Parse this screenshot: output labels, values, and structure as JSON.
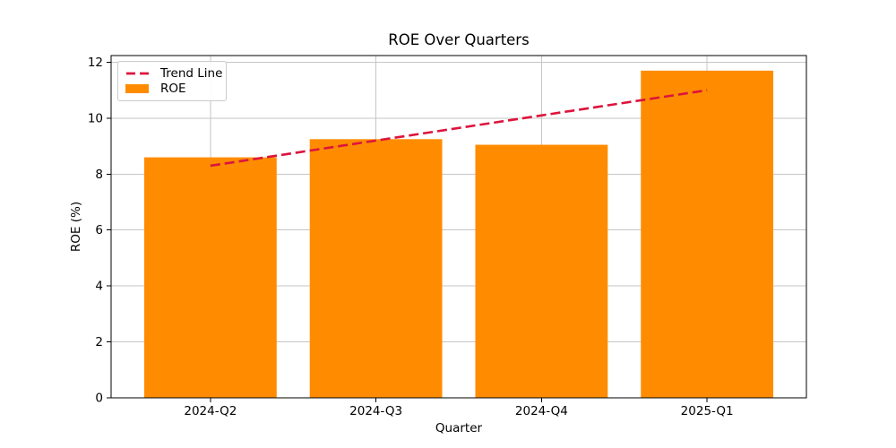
{
  "chart_data": {
    "type": "bar",
    "title": "ROE Over Quarters",
    "xlabel": "Quarter",
    "ylabel": "ROE (%)",
    "categories": [
      "2024-Q2",
      "2024-Q3",
      "2024-Q4",
      "2025-Q1"
    ],
    "series": [
      {
        "name": "ROE",
        "type": "bar",
        "color": "#ff8c00",
        "values": [
          8.6,
          9.25,
          9.05,
          11.7
        ]
      },
      {
        "name": "Trend Line",
        "type": "line",
        "style": "dashed",
        "color": "#dc143c",
        "values": [
          8.3,
          9.2,
          10.1,
          11.0
        ]
      }
    ],
    "ylim": [
      0,
      12.24
    ],
    "yticks": [
      0,
      2,
      4,
      6,
      8,
      10,
      12
    ],
    "grid": true,
    "grid_color": "#c6c6c6",
    "axis_color": "#000000",
    "background_color": "#ffffff",
    "bar_width_fraction": 0.8,
    "legend": {
      "position": "upper left",
      "items": [
        {
          "label": "Trend Line",
          "swatch": "dashed-line",
          "color": "#dc143c"
        },
        {
          "label": "ROE",
          "swatch": "filled-box",
          "color": "#ff8c00"
        }
      ]
    }
  }
}
